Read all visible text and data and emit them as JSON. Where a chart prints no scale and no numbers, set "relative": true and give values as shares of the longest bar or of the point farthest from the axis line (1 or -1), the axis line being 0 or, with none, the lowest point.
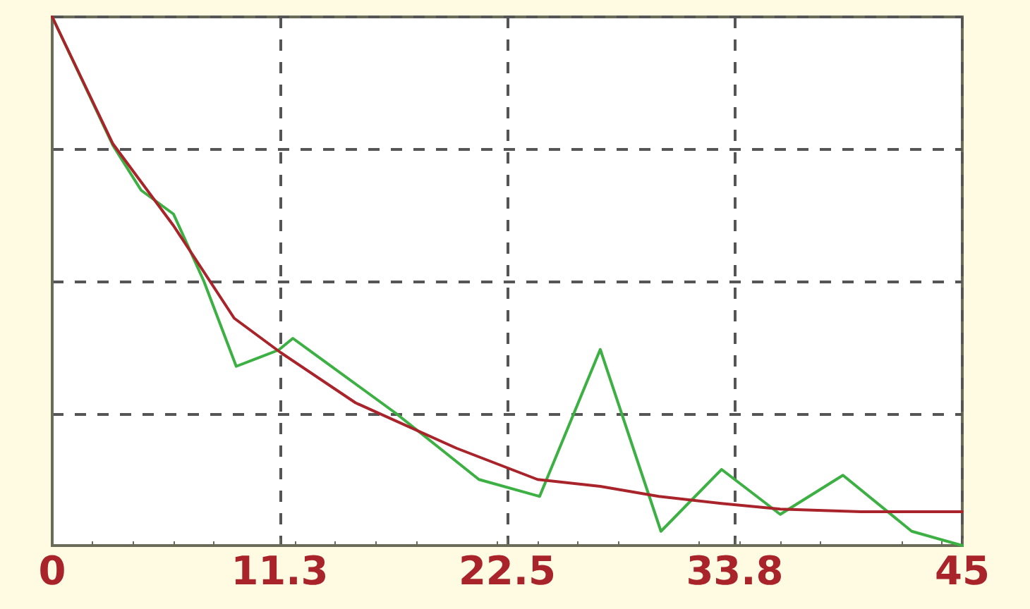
{
  "chart_data": {
    "type": "line",
    "relative": true,
    "xlim": [
      0,
      45
    ],
    "xticks": [
      0,
      {
        "value": 11.25,
        "label": "11.3"
      },
      22.5,
      {
        "value": 33.75,
        "label": "33.8"
      },
      45
    ],
    "grid": true,
    "marker": "none",
    "line_style": "solid",
    "series": [
      {
        "color": "#3cb043",
        "x": [
          0,
          3.0,
          4.4,
          6.0,
          7.5,
          9.1,
          11.2,
          11.9,
          17.0,
          21.1,
          24.1,
          27.1,
          30.1,
          33.1,
          36.0,
          39.1,
          42.5,
          45
        ],
        "values": [
          1.0,
          0.757,
          0.672,
          0.627,
          0.5,
          0.339,
          0.37,
          0.392,
          0.25,
          0.125,
          0.093,
          0.371,
          0.027,
          0.144,
          0.059,
          0.133,
          0.027,
          0.0
        ]
      },
      {
        "color": "#a8232a",
        "x": [
          0,
          3,
          6,
          9,
          11.3,
          15,
          20,
          24,
          27.1,
          30,
          33,
          36,
          40,
          45
        ],
        "values": [
          1.0,
          0.76,
          0.605,
          0.43,
          0.365,
          0.27,
          0.184,
          0.125,
          0.112,
          0.093,
          0.08,
          0.069,
          0.064,
          0.064
        ]
      }
    ]
  }
}
